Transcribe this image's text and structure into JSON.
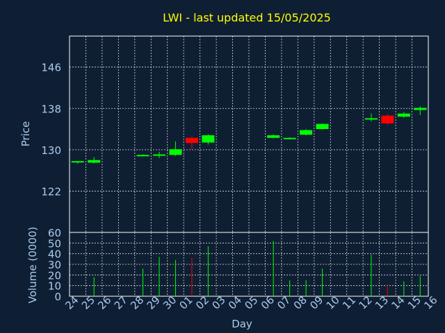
{
  "chart_data": {
    "type": "candlestick",
    "title": "LWI - last updated 15/05/2025",
    "xlabel": "Day",
    "price_panel": {
      "ylabel": "Price",
      "ylim": [
        114,
        152
      ],
      "yticks": [
        122,
        130,
        138,
        146
      ],
      "grid": true
    },
    "volume_panel": {
      "ylabel": "Volume (0000)",
      "ylim": [
        0,
        60
      ],
      "yticks": [
        0,
        10,
        20,
        30,
        40,
        50,
        60
      ],
      "grid": true
    },
    "x_tick_labels": [
      "24",
      "25",
      "26",
      "27",
      "28",
      "29",
      "30",
      "01",
      "02",
      "03",
      "04",
      "05",
      "06",
      "07",
      "08",
      "09",
      "10",
      "11",
      "12",
      "13",
      "14",
      "15",
      "16"
    ],
    "up_color": "#00ff00",
    "down_color": "#ff0000",
    "candles": [
      {
        "day": "24",
        "open": 127.6,
        "high": 127.8,
        "low": 127.3,
        "close": 127.8,
        "volume": 0
      },
      {
        "day": "25",
        "open": 127.5,
        "high": 128.6,
        "low": 127.3,
        "close": 128.0,
        "volume": 18
      },
      {
        "day": "28",
        "open": 128.9,
        "high": 129.1,
        "low": 128.7,
        "close": 129.0,
        "volume": 26
      },
      {
        "day": "29",
        "open": 128.9,
        "high": 129.6,
        "low": 128.4,
        "close": 129.1,
        "volume": 37
      },
      {
        "day": "30",
        "open": 129.0,
        "high": 131.6,
        "low": 128.8,
        "close": 130.1,
        "volume": 34
      },
      {
        "day": "01",
        "open": 132.3,
        "high": 132.5,
        "low": 130.0,
        "close": 131.3,
        "volume": 36
      },
      {
        "day": "02",
        "open": 131.4,
        "high": 133.0,
        "low": 131.0,
        "close": 132.8,
        "volume": 47
      },
      {
        "day": "06",
        "open": 132.3,
        "high": 133.0,
        "low": 132.2,
        "close": 132.8,
        "volume": 52
      },
      {
        "day": "07",
        "open": 132.1,
        "high": 132.4,
        "low": 132.0,
        "close": 132.3,
        "volume": 15
      },
      {
        "day": "08",
        "open": 132.9,
        "high": 134.0,
        "low": 132.8,
        "close": 133.8,
        "volume": 15
      },
      {
        "day": "09",
        "open": 134.0,
        "high": 135.1,
        "low": 133.9,
        "close": 135.0,
        "volume": 26
      },
      {
        "day": "12",
        "open": 135.9,
        "high": 137.0,
        "low": 135.5,
        "close": 136.1,
        "volume": 39
      },
      {
        "day": "13",
        "open": 136.6,
        "high": 136.9,
        "low": 134.8,
        "close": 135.1,
        "volume": 11
      },
      {
        "day": "14",
        "open": 136.4,
        "high": 137.3,
        "low": 136.2,
        "close": 137.0,
        "volume": 14
      },
      {
        "day": "15",
        "open": 137.7,
        "high": 138.4,
        "low": 136.7,
        "close": 138.1,
        "volume": 19
      }
    ]
  }
}
